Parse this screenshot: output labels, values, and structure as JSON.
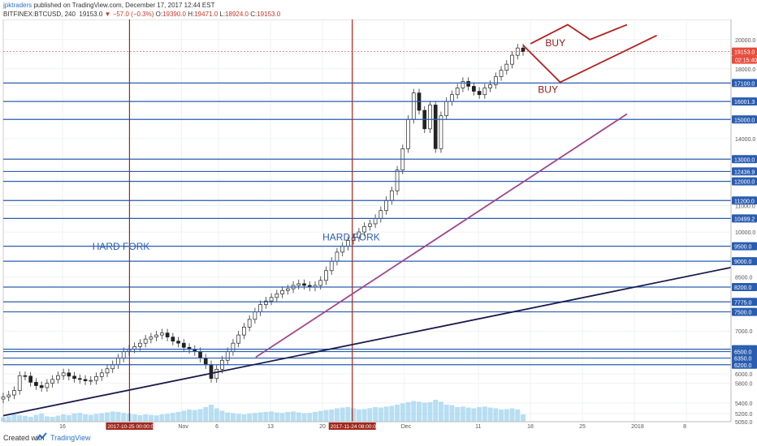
{
  "header": {
    "author": "jpktraders",
    "published": " published on TradingView.com, December 17, 2017 12:44 EST",
    "symbol": "BITFINEX:BTCUSD, 240",
    "last": "19153.0",
    "change": "−57.0 (−0.3%)",
    "o_label": "O:",
    "o_value": "19390.0",
    "h_label": "H:",
    "h_value": "19471.0",
    "l_label": "L:",
    "l_value": "18924.0",
    "c_label": "C:",
    "c_value": "19153.0"
  },
  "footer": {
    "created": "Created with",
    "brand": "TradingView"
  },
  "chart_data": {
    "type": "candlestick",
    "y_scale": "log",
    "ylim": [
      5050,
      21500
    ],
    "y_ticks": [
      20000,
      19000,
      18000,
      14000,
      11000,
      10000,
      8500,
      7000,
      6000,
      5800,
      5400,
      5200,
      5050
    ],
    "y_tick_labels": [
      "20000.0",
      "19000.0",
      "18000.0",
      "14000.0",
      "11000.0",
      "10000.0",
      "8500.0",
      "7000.0",
      "6000.0",
      "5800.0",
      "5400.0",
      "5200.0",
      "5050.0"
    ],
    "x_tick_labels": [
      "16",
      "Nov",
      "6",
      "13",
      "20",
      "Dec",
      "11",
      "18",
      "25",
      "2018",
      "8"
    ],
    "x_tick_dates": [
      "2017-10-16",
      "2017-11-01",
      "2017-11-06",
      "2017-11-13",
      "2017-11-20",
      "2017-12-01",
      "2017-12-11",
      "2017-12-18",
      "2017-12-25",
      "2018-01-01",
      "2018-01-08"
    ],
    "x_date_labels": [
      "2017-10-25 00:00:00",
      "2017-11-24 08:00:00"
    ],
    "horizontal_levels": [
      {
        "value": 17100,
        "label": "17100.0"
      },
      {
        "value": 16001.3,
        "label": "16001.3"
      },
      {
        "value": 15000,
        "label": "15000.0"
      },
      {
        "value": 13000,
        "label": "13000.0"
      },
      {
        "value": 12436.9,
        "label": "12436.9"
      },
      {
        "value": 12000,
        "label": "12000.0"
      },
      {
        "value": 11200,
        "label": "11200.0"
      },
      {
        "value": 10499.2,
        "label": "10499.2"
      },
      {
        "value": 9500,
        "label": "9500.0"
      },
      {
        "value": 9000,
        "label": "9000.0"
      },
      {
        "value": 8200,
        "label": "8200.0"
      },
      {
        "value": 7775,
        "label": "7775.0"
      },
      {
        "value": 7500,
        "label": "7500.0"
      },
      {
        "value": 6556.9,
        "label": "6556.9"
      },
      {
        "value": 6500,
        "label": "6500.0"
      },
      {
        "value": 6350,
        "label": "6350.0"
      },
      {
        "value": 6200,
        "label": "6200.0"
      }
    ],
    "price_label": {
      "value": 19153,
      "label": "19153.0",
      "timer": "02:15:40"
    },
    "vertical_markers": [
      {
        "date": "2017-10-25",
        "label": "2017-10-25 00:00:00"
      },
      {
        "date": "2017-11-24",
        "label": "2017-11-24 08:00:00"
      }
    ],
    "annotations": [
      {
        "text": "HARD FORK",
        "date": "2017-10-20",
        "value": 9380
      },
      {
        "text": "HARD FORK",
        "date": "2017-11-20",
        "value": 9700
      },
      {
        "text": "BUY",
        "date": "2017-12-20",
        "value": 19530
      },
      {
        "text": "BUY",
        "date": "2017-12-19",
        "value": 16500
      }
    ],
    "trendlines": [
      {
        "from": {
          "date": "2017-10-08",
          "value": 5160
        },
        "to": {
          "date": "2018-01-14",
          "value": 8800
        },
        "color": "#1a1a4e"
      },
      {
        "from": {
          "date": "2017-11-11",
          "value": 6370
        },
        "to": {
          "date": "2017-12-31",
          "value": 15300
        },
        "color": "#a0458f"
      }
    ],
    "projections": [
      {
        "points": [
          {
            "date": "2017-12-18",
            "value": 19700
          },
          {
            "date": "2017-12-23",
            "value": 21100
          },
          {
            "date": "2017-12-26",
            "value": 20000
          },
          {
            "date": "2017-12-31",
            "value": 21100
          }
        ],
        "color": "#b22222"
      },
      {
        "points": [
          {
            "date": "2017-12-17",
            "value": 19600
          },
          {
            "date": "2017-12-22",
            "value": 17150
          },
          {
            "date": "2018-01-04",
            "value": 20300
          }
        ],
        "color": "#b22222"
      }
    ],
    "candles_close": [
      5520,
      5560,
      5650,
      5960,
      5950,
      5820,
      5750,
      5710,
      5800,
      5880,
      5960,
      6020,
      5950,
      5900,
      5880,
      5850,
      5860,
      5940,
      6020,
      6110,
      6200,
      6350,
      6500,
      6560,
      6620,
      6700,
      6800,
      6850,
      6900,
      6950,
      6850,
      6750,
      6700,
      6600,
      6550,
      6500,
      6350,
      6200,
      5900,
      6100,
      6300,
      6500,
      6700,
      6900,
      7100,
      7300,
      7500,
      7700,
      7800,
      7900,
      8000,
      8100,
      8150,
      8250,
      8300,
      8250,
      8200,
      8250,
      8400,
      8700,
      9000,
      9300,
      9500,
      9700,
      9800,
      10000,
      10200,
      10300,
      10500,
      10800,
      11200,
      11600,
      12500,
      13500,
      15000,
      16500,
      15500,
      14500,
      15800,
      13500,
      15200,
      16000,
      16400,
      16800,
      17200,
      16900,
      16600,
      16400,
      16800,
      17000,
      17500,
      17900,
      18300,
      18900,
      19400,
      19150
    ]
  }
}
